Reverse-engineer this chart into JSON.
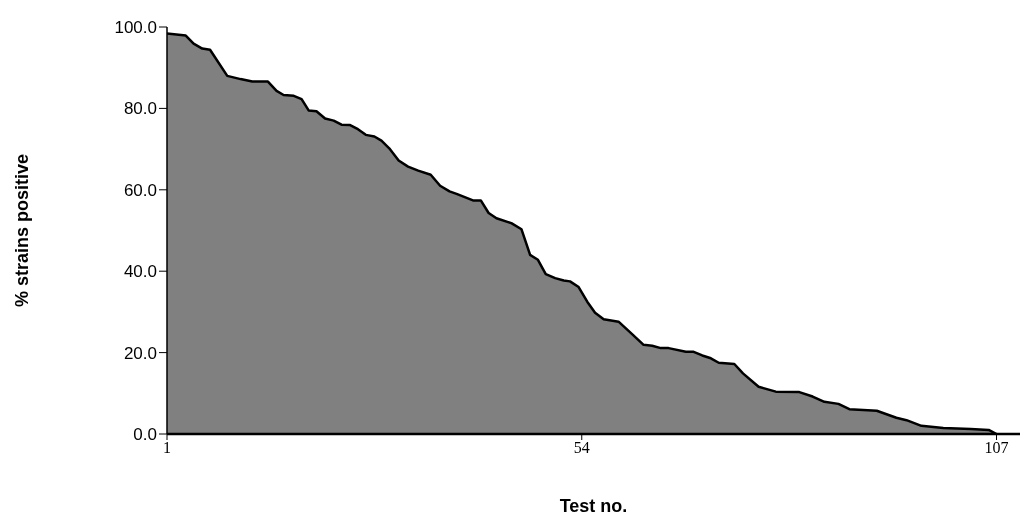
{
  "chart_data": {
    "type": "area",
    "xlabel": "Test no.",
    "ylabel": "% strains positive",
    "x": [
      1,
      3.4,
      4.4,
      5.5,
      6.5,
      8.7,
      10.4,
      11.9,
      13.9,
      15,
      15.9,
      17.2,
      18.2,
      19.1,
      20.1,
      21.2,
      22.3,
      23.3,
      24.4,
      25.4,
      26.4,
      27.5,
      28.4,
      29.4,
      30.6,
      31.8,
      33.1,
      34.7,
      35.9,
      37.1,
      38,
      40.1,
      41.1,
      42.1,
      43.1,
      45,
      46.3,
      47.4,
      48.4,
      49.4,
      50.6,
      51.7,
      52.5,
      53.6,
      54.7,
      55.7,
      56.8,
      58.7,
      60.4,
      61.9,
      63,
      64.1,
      65.1,
      67.3,
      68.3,
      69.4,
      70.5,
      71.5,
      73.5,
      74.6,
      76.6,
      78.8,
      81.8,
      83.5,
      85,
      86.8,
      88.2,
      91.7,
      94.2,
      95.5,
      97.4,
      100.2,
      103.7,
      106,
      107
    ],
    "values": [
      98.4,
      97.9,
      95.9,
      94.7,
      94.4,
      88,
      87.2,
      86.6,
      86.6,
      84.3,
      83.3,
      83.1,
      82.3,
      79.5,
      79.3,
      77.5,
      77,
      76,
      75.9,
      74.9,
      73.5,
      73.1,
      72.1,
      70.2,
      67.2,
      65.7,
      64.7,
      63.7,
      61,
      59.6,
      59,
      57.4,
      57.4,
      54.3,
      53,
      51.8,
      50.3,
      44,
      42.8,
      39.3,
      38.3,
      37.7,
      37.5,
      36.1,
      32.5,
      29.8,
      28.2,
      27.6,
      24.6,
      21.9,
      21.7,
      21.1,
      21.1,
      20.2,
      20.2,
      19.3,
      18.6,
      17.5,
      17.2,
      14.9,
      11.6,
      10.4,
      10.3,
      9.2,
      7.9,
      7.4,
      6.1,
      5.7,
      4,
      3.4,
      2,
      1.5,
      1.2,
      1,
      0
    ],
    "color": "#808080",
    "xlim": [
      1,
      110
    ],
    "xticks": [
      1,
      54,
      107
    ],
    "ylim": [
      0,
      100
    ],
    "yticks": [
      {
        "value": 0,
        "label": "0.0"
      },
      {
        "value": 20,
        "label": "20.0"
      },
      {
        "value": 40,
        "label": "40.0"
      },
      {
        "value": 60,
        "label": "60.0"
      },
      {
        "value": 80,
        "label": "80.0"
      },
      {
        "value": 100,
        "label": "100.0"
      }
    ],
    "grid": false,
    "legend": false
  }
}
